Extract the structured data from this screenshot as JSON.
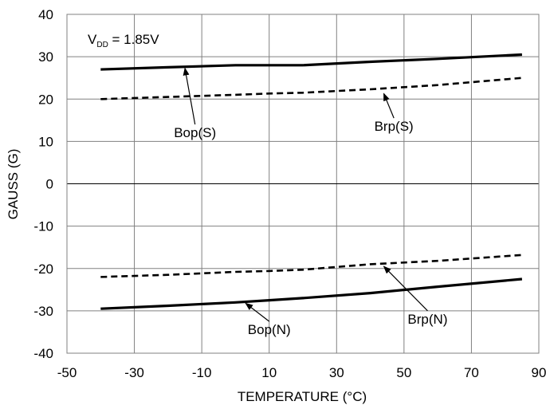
{
  "chart_data": {
    "type": "line",
    "title": "",
    "xlabel": "TEMPERATURE (°C)",
    "ylabel": "GAUSS (G)",
    "xlim": [
      -50,
      90
    ],
    "ylim": [
      -40,
      40
    ],
    "xticks": [
      -50,
      -30,
      -10,
      10,
      30,
      50,
      70,
      90
    ],
    "yticks": [
      -40,
      -30,
      -20,
      -10,
      0,
      10,
      20,
      30,
      40
    ],
    "grid": true,
    "annotation": {
      "main": "V",
      "sub": "DD",
      "rest": " = 1.85V"
    },
    "series": [
      {
        "name": "Bop(S)",
        "style": "solid",
        "x": [
          -40,
          -20,
          0,
          10,
          20,
          40,
          60,
          85
        ],
        "y": [
          27,
          27.5,
          28,
          28,
          28,
          28.8,
          29.5,
          30.5
        ],
        "label_at": [
          -12,
          11
        ],
        "arrow_tip": [
          -15,
          27.3
        ]
      },
      {
        "name": "Brp(S)",
        "style": "dashed",
        "x": [
          -40,
          -20,
          0,
          10,
          20,
          40,
          60,
          85
        ],
        "y": [
          20,
          20.5,
          21,
          21.3,
          21.5,
          22.3,
          23.3,
          25
        ],
        "label_at": [
          47,
          12.5
        ],
        "arrow_tip": [
          44,
          21.3
        ]
      },
      {
        "name": "Brp(N)",
        "style": "dashed",
        "x": [
          -40,
          -20,
          0,
          10,
          20,
          40,
          60,
          85
        ],
        "y": [
          -22,
          -21.5,
          -20.8,
          -20.6,
          -20.3,
          -19,
          -18.2,
          -16.8
        ],
        "label_at": [
          57,
          -33
        ],
        "arrow_tip": [
          44,
          -19.5
        ]
      },
      {
        "name": "Bop(N)",
        "style": "solid",
        "x": [
          -40,
          -20,
          0,
          10,
          20,
          40,
          60,
          85
        ],
        "y": [
          -29.5,
          -28.8,
          -28,
          -27.5,
          -27,
          -25.8,
          -24.3,
          -22.5
        ],
        "label_at": [
          10,
          -35.5
        ],
        "arrow_tip": [
          3,
          -28.2
        ]
      }
    ]
  }
}
